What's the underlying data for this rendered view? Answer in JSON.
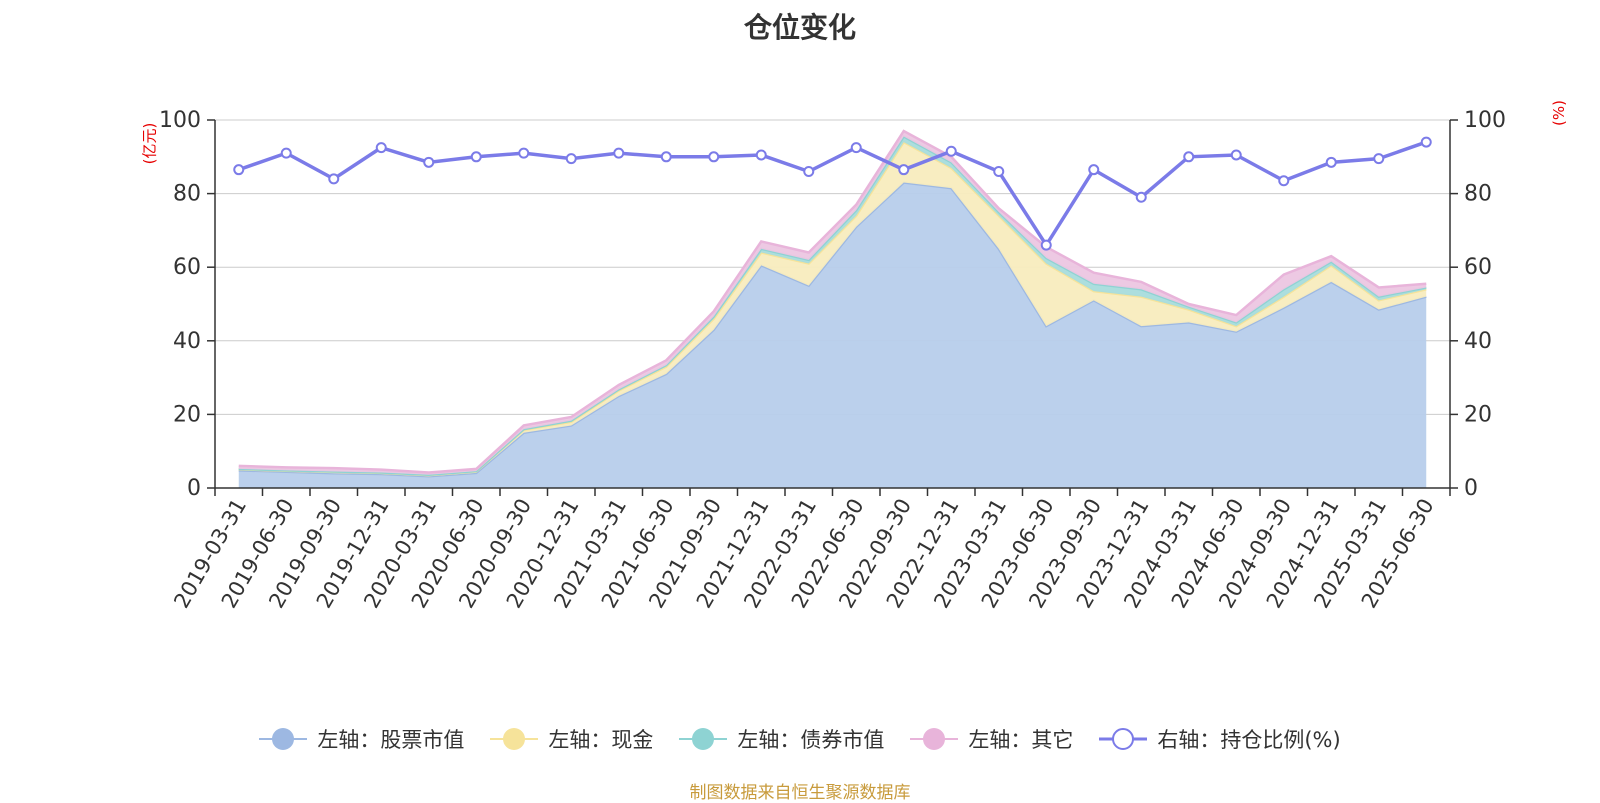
{
  "colors": {
    "stock": "#9db8e2",
    "stock_fill": "#b7cdeb",
    "cash": "#f6e39a",
    "cash_fill": "#f8ecbe",
    "bond": "#8ed3d3",
    "bond_fill": "#a8dcdc",
    "other": "#e8b4da",
    "other_fill": "#ecc6e2",
    "ratio": "#7b7be8",
    "axis": "#333333",
    "grid": "#cccccc",
    "unit": "#e60000"
  },
  "legend": {
    "stock": "左轴：股票市值",
    "cash": "左轴：现金",
    "bond": "左轴：债券市值",
    "other": "左轴：其它",
    "ratio": "右轴：持仓比例(%)"
  },
  "source_note": "制图数据来自恒生聚源数据库",
  "chart_data": {
    "type": "area",
    "title": "仓位变化",
    "left_axis_unit": "(亿元)",
    "right_axis_unit": "(%)",
    "ylim_left": [
      0,
      100
    ],
    "ylim_right": [
      0,
      100
    ],
    "yticks": [
      0,
      20,
      40,
      60,
      80,
      100
    ],
    "grid": true,
    "legend_position": "bottom",
    "categories": [
      "2019-03-31",
      "2019-06-30",
      "2019-09-30",
      "2019-12-31",
      "2020-03-31",
      "2020-06-30",
      "2020-09-30",
      "2020-12-31",
      "2021-03-31",
      "2021-06-30",
      "2021-09-30",
      "2021-12-31",
      "2022-03-31",
      "2022-06-30",
      "2022-09-30",
      "2022-12-31",
      "2023-03-31",
      "2023-06-30",
      "2023-09-30",
      "2023-12-31",
      "2024-03-31",
      "2024-06-30",
      "2024-09-30",
      "2024-12-31",
      "2025-03-31",
      "2025-06-30"
    ],
    "series": [
      {
        "name": "左轴：股票市值",
        "axis": "left",
        "stacked": true,
        "values": [
          4.8,
          4.4,
          4.0,
          3.8,
          3.2,
          4.1,
          15.0,
          17.0,
          25.0,
          31.0,
          43.0,
          60.5,
          55.0,
          71.0,
          83.0,
          81.5,
          65.0,
          44.0,
          51.0,
          44.0,
          45.0,
          42.5,
          49.0,
          56.0,
          48.5,
          52.0
        ]
      },
      {
        "name": "左轴：现金",
        "axis": "left",
        "stacked": true,
        "values": [
          0.3,
          0.3,
          0.4,
          0.3,
          0.3,
          0.4,
          0.8,
          1.0,
          1.5,
          2.0,
          3.0,
          3.5,
          6.0,
          3.0,
          11.0,
          5.5,
          9.0,
          17.0,
          2.5,
          8.0,
          3.5,
          1.5,
          3.0,
          4.5,
          2.5,
          2.0
        ]
      },
      {
        "name": "左轴：债券市值",
        "axis": "left",
        "stacked": true,
        "values": [
          0.1,
          0.1,
          0.1,
          0.1,
          0.1,
          0.1,
          0.2,
          0.3,
          0.3,
          0.4,
          0.6,
          1.0,
          1.0,
          1.5,
          1.5,
          1.5,
          1.0,
          1.5,
          2.0,
          2.0,
          0.8,
          1.0,
          2.0,
          1.0,
          1.0,
          0.5
        ]
      },
      {
        "name": "左轴：其它",
        "axis": "left",
        "stacked": true,
        "values": [
          0.8,
          0.8,
          0.9,
          0.8,
          0.6,
          0.6,
          1.0,
          1.0,
          1.2,
          1.3,
          1.4,
          2.0,
          2.0,
          1.5,
          1.5,
          1.5,
          1.0,
          3.0,
          3.0,
          2.0,
          0.7,
          2.0,
          4.0,
          1.5,
          2.5,
          1.0
        ]
      },
      {
        "name": "右轴：持仓比例(%)",
        "axis": "right",
        "type": "line",
        "values": [
          86.5,
          91.0,
          84.0,
          92.5,
          88.5,
          90.0,
          91.0,
          89.5,
          91.0,
          90.0,
          90.0,
          90.5,
          86.0,
          92.5,
          86.5,
          91.5,
          86.0,
          66.0,
          86.5,
          79.0,
          90.0,
          90.5,
          83.5,
          88.5,
          89.5,
          94.0
        ]
      }
    ]
  }
}
